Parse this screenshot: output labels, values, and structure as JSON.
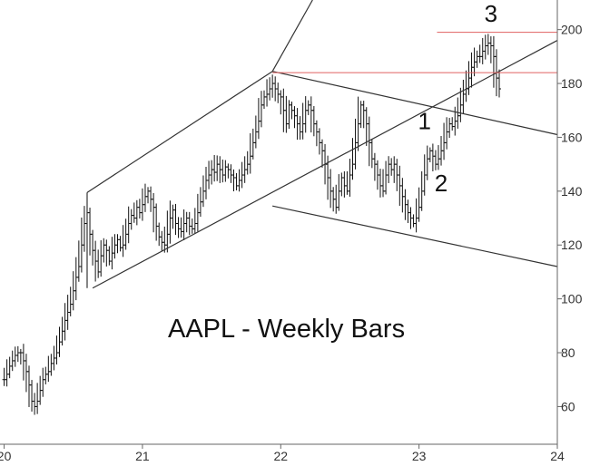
{
  "chart_data": {
    "type": "ohlc",
    "title": "",
    "annotation": "AAPL - Weekly Bars",
    "xlabel": "",
    "ylabel": "",
    "x_ticks": [
      "20",
      "21",
      "22",
      "23",
      "24"
    ],
    "y_ticks": [
      "60",
      "80",
      "100",
      "120",
      "140",
      "160",
      "180",
      "200"
    ],
    "xlim": [
      2019.97,
      2024.0
    ],
    "ylim": [
      46,
      211
    ],
    "y_axis_side": "right",
    "grid": false,
    "bar_color": "#111111",
    "weekly_close": [
      [
        2020.0,
        70
      ],
      [
        2020.02,
        72
      ],
      [
        2020.04,
        75
      ],
      [
        2020.06,
        77
      ],
      [
        2020.08,
        79
      ],
      [
        2020.1,
        80
      ],
      [
        2020.12,
        80
      ],
      [
        2020.14,
        77
      ],
      [
        2020.16,
        73
      ],
      [
        2020.18,
        68
      ],
      [
        2020.2,
        62
      ],
      [
        2020.22,
        60
      ],
      [
        2020.24,
        62
      ],
      [
        2020.26,
        66
      ],
      [
        2020.28,
        70
      ],
      [
        2020.3,
        72
      ],
      [
        2020.32,
        73
      ],
      [
        2020.34,
        76
      ],
      [
        2020.36,
        78
      ],
      [
        2020.38,
        80
      ],
      [
        2020.4,
        84
      ],
      [
        2020.42,
        88
      ],
      [
        2020.44,
        92
      ],
      [
        2020.46,
        95
      ],
      [
        2020.48,
        98
      ],
      [
        2020.5,
        103
      ],
      [
        2020.52,
        108
      ],
      [
        2020.54,
        112
      ],
      [
        2020.56,
        120
      ],
      [
        2020.58,
        128
      ],
      [
        2020.6,
        132
      ],
      [
        2020.62,
        124
      ],
      [
        2020.64,
        118
      ],
      [
        2020.66,
        114
      ],
      [
        2020.68,
        110
      ],
      [
        2020.7,
        116
      ],
      [
        2020.72,
        120
      ],
      [
        2020.74,
        118
      ],
      [
        2020.76,
        114
      ],
      [
        2020.78,
        117
      ],
      [
        2020.8,
        120
      ],
      [
        2020.82,
        122
      ],
      [
        2020.84,
        119
      ],
      [
        2020.86,
        120
      ],
      [
        2020.88,
        124
      ],
      [
        2020.9,
        128
      ],
      [
        2020.92,
        131
      ],
      [
        2020.94,
        130
      ],
      [
        2020.96,
        134
      ],
      [
        2020.98,
        132
      ],
      [
        2021.0,
        135
      ],
      [
        2021.02,
        138
      ],
      [
        2021.04,
        140
      ],
      [
        2021.06,
        137
      ],
      [
        2021.08,
        134
      ],
      [
        2021.1,
        127
      ],
      [
        2021.12,
        123
      ],
      [
        2021.14,
        121
      ],
      [
        2021.16,
        120
      ],
      [
        2021.18,
        124
      ],
      [
        2021.2,
        130
      ],
      [
        2021.22,
        133
      ],
      [
        2021.24,
        128
      ],
      [
        2021.26,
        126
      ],
      [
        2021.28,
        125
      ],
      [
        2021.3,
        128
      ],
      [
        2021.32,
        130
      ],
      [
        2021.34,
        127
      ],
      [
        2021.36,
        126
      ],
      [
        2021.38,
        128
      ],
      [
        2021.4,
        132
      ],
      [
        2021.42,
        136
      ],
      [
        2021.44,
        140
      ],
      [
        2021.46,
        144
      ],
      [
        2021.48,
        146
      ],
      [
        2021.5,
        148
      ],
      [
        2021.52,
        147
      ],
      [
        2021.54,
        150
      ],
      [
        2021.56,
        148
      ],
      [
        2021.58,
        146
      ],
      [
        2021.6,
        149
      ],
      [
        2021.62,
        148
      ],
      [
        2021.64,
        146
      ],
      [
        2021.66,
        145
      ],
      [
        2021.68,
        142
      ],
      [
        2021.7,
        144
      ],
      [
        2021.72,
        146
      ],
      [
        2021.74,
        148
      ],
      [
        2021.76,
        150
      ],
      [
        2021.78,
        153
      ],
      [
        2021.8,
        158
      ],
      [
        2021.82,
        162
      ],
      [
        2021.84,
        166
      ],
      [
        2021.86,
        172
      ],
      [
        2021.88,
        175
      ],
      [
        2021.9,
        176
      ],
      [
        2021.92,
        178
      ],
      [
        2021.94,
        180
      ],
      [
        2021.96,
        178
      ],
      [
        2021.98,
        176
      ],
      [
        2022.0,
        175
      ],
      [
        2022.02,
        170
      ],
      [
        2022.04,
        165
      ],
      [
        2022.06,
        172
      ],
      [
        2022.08,
        170
      ],
      [
        2022.1,
        168
      ],
      [
        2022.12,
        165
      ],
      [
        2022.14,
        162
      ],
      [
        2022.16,
        165
      ],
      [
        2022.18,
        170
      ],
      [
        2022.2,
        172
      ],
      [
        2022.22,
        170
      ],
      [
        2022.24,
        165
      ],
      [
        2022.26,
        162
      ],
      [
        2022.28,
        158
      ],
      [
        2022.3,
        155
      ],
      [
        2022.32,
        150
      ],
      [
        2022.34,
        145
      ],
      [
        2022.36,
        140
      ],
      [
        2022.38,
        137
      ],
      [
        2022.4,
        134
      ],
      [
        2022.42,
        140
      ],
      [
        2022.44,
        145
      ],
      [
        2022.46,
        142
      ],
      [
        2022.48,
        140
      ],
      [
        2022.5,
        146
      ],
      [
        2022.52,
        150
      ],
      [
        2022.54,
        158
      ],
      [
        2022.56,
        165
      ],
      [
        2022.58,
        172
      ],
      [
        2022.6,
        170
      ],
      [
        2022.62,
        165
      ],
      [
        2022.64,
        158
      ],
      [
        2022.66,
        152
      ],
      [
        2022.68,
        150
      ],
      [
        2022.7,
        146
      ],
      [
        2022.72,
        142
      ],
      [
        2022.74,
        140
      ],
      [
        2022.76,
        146
      ],
      [
        2022.78,
        150
      ],
      [
        2022.8,
        148
      ],
      [
        2022.82,
        150
      ],
      [
        2022.84,
        146
      ],
      [
        2022.86,
        142
      ],
      [
        2022.88,
        138
      ],
      [
        2022.9,
        135
      ],
      [
        2022.92,
        132
      ],
      [
        2022.94,
        130
      ],
      [
        2022.96,
        128
      ],
      [
        2022.98,
        130
      ],
      [
        2023.0,
        134
      ],
      [
        2023.02,
        140
      ],
      [
        2023.04,
        146
      ],
      [
        2023.06,
        152
      ],
      [
        2023.08,
        155
      ],
      [
        2023.1,
        153
      ],
      [
        2023.12,
        150
      ],
      [
        2023.14,
        152
      ],
      [
        2023.16,
        155
      ],
      [
        2023.18,
        158
      ],
      [
        2023.2,
        162
      ],
      [
        2023.22,
        165
      ],
      [
        2023.24,
        164
      ],
      [
        2023.26,
        166
      ],
      [
        2023.28,
        168
      ],
      [
        2023.3,
        172
      ],
      [
        2023.32,
        176
      ],
      [
        2023.34,
        178
      ],
      [
        2023.36,
        182
      ],
      [
        2023.38,
        186
      ],
      [
        2023.4,
        188
      ],
      [
        2023.42,
        190
      ],
      [
        2023.44,
        190
      ],
      [
        2023.46,
        192
      ],
      [
        2023.48,
        194
      ],
      [
        2023.5,
        195
      ],
      [
        2023.52,
        194
      ],
      [
        2023.54,
        190
      ],
      [
        2023.56,
        182
      ],
      [
        2023.58,
        178
      ]
    ],
    "trend_lines": [
      {
        "style": "black",
        "x1": 2020.6,
        "y1": 139.5,
        "x2": 2021.94,
        "y2": 184.5
      },
      {
        "style": "black",
        "x1": 2021.94,
        "y1": 184.5,
        "x2": 2022.23,
        "y2": 211
      },
      {
        "style": "black",
        "x1": 2020.64,
        "y1": 104,
        "x2": 2024.0,
        "y2": 196
      },
      {
        "style": "black",
        "x1": 2020.6,
        "y1": 139.5,
        "x2": 2020.6,
        "y2": 104
      },
      {
        "style": "black",
        "x1": 2021.94,
        "y1": 184.5,
        "x2": 2024.0,
        "y2": 161
      },
      {
        "style": "black",
        "x1": 2021.94,
        "y1": 134.5,
        "x2": 2024.0,
        "y2": 112
      },
      {
        "style": "red",
        "x1": 2021.94,
        "y1": 184,
        "x2": 2024.0,
        "y2": 184
      },
      {
        "style": "red",
        "x1": 2023.13,
        "y1": 199,
        "x2": 2024.0,
        "y2": 199
      }
    ],
    "wave_labels": [
      {
        "text": "1",
        "x": 2023.04,
        "y": 163
      },
      {
        "text": "2",
        "x": 2023.16,
        "y": 140
      },
      {
        "text": "3",
        "x": 2023.52,
        "y": 203
      }
    ],
    "colors": {
      "bars": "#111111",
      "trend_lines": "#333333",
      "resistance": "#e06060",
      "axis": "#666666"
    }
  }
}
